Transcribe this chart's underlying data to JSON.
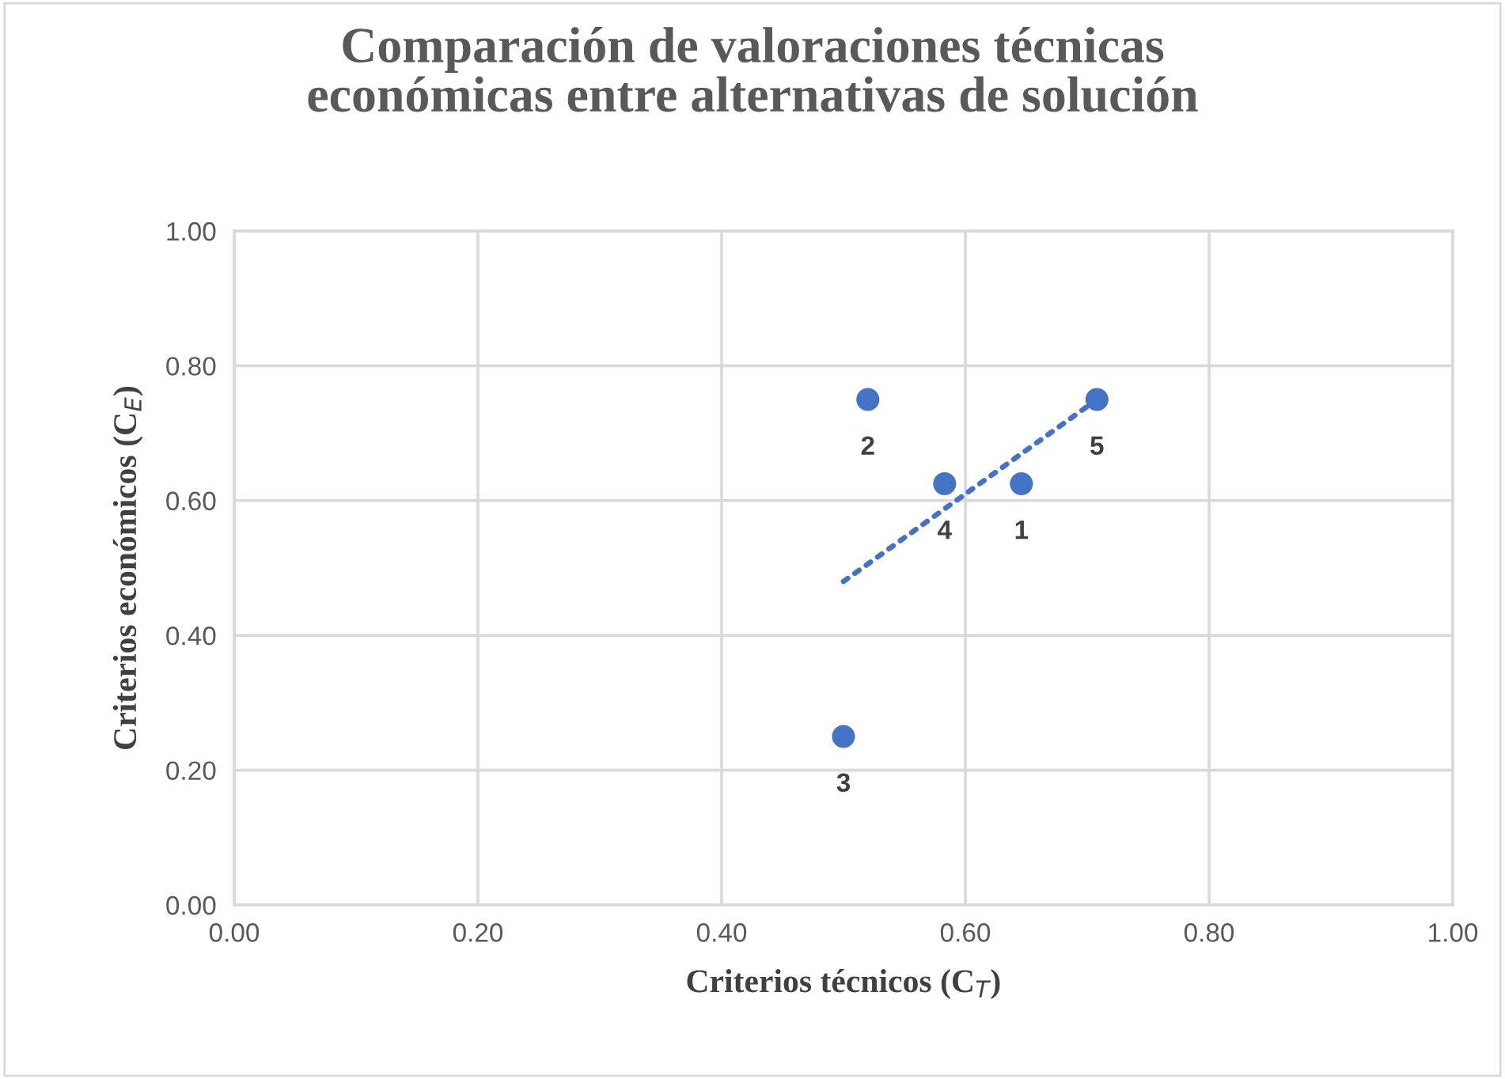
{
  "chart_data": {
    "type": "scatter",
    "title": "Comparación de valoraciones técnicas\neconómicas entre alternativas de solución",
    "xlabel": "Criterios técnicos (C$_{T}$)",
    "ylabel": "Criterios económicos (C$_{E}$)",
    "series": [
      {
        "color": "#4472c4",
        "marker": "circle",
        "x": [
          0.646,
          0.52,
          0.5,
          0.583,
          0.708
        ],
        "values": [
          0.625,
          0.75,
          0.25,
          0.625,
          0.75
        ]
      },
      {
        "type": "line",
        "color": "#4472c4",
        "line_style": "dotted",
        "marker": "none",
        "x": [
          0.5,
          0.708
        ],
        "values": [
          0.48,
          0.75
        ]
      }
    ],
    "xlim": [
      0,
      1
    ],
    "ylim": [
      0,
      1
    ],
    "xticks": [
      {
        "value": 0,
        "label": "0.00"
      },
      {
        "value": 0.2,
        "label": "0.20"
      },
      {
        "value": 0.4,
        "label": "0.40"
      },
      {
        "value": 0.6,
        "label": "0.60"
      },
      {
        "value": 0.8,
        "label": "0.80"
      },
      {
        "value": 1,
        "label": "1.00"
      }
    ],
    "yticks": [
      {
        "value": 0,
        "label": "0.00"
      },
      {
        "value": 0.2,
        "label": "0.20"
      },
      {
        "value": 0.4,
        "label": "0.40"
      },
      {
        "value": 0.6,
        "label": "0.60"
      },
      {
        "value": 0.8,
        "label": "0.80"
      },
      {
        "value": 1,
        "label": "1.00"
      }
    ],
    "annotations": [
      {
        "text": "1",
        "x": 0.646,
        "y": 0.625
      },
      {
        "text": "2",
        "x": 0.52,
        "y": 0.75
      },
      {
        "text": "3",
        "x": 0.5,
        "y": 0.25
      },
      {
        "text": "4",
        "x": 0.583,
        "y": 0.625
      },
      {
        "text": "5",
        "x": 0.708,
        "y": 0.75
      }
    ],
    "grid": true,
    "legend": false
  }
}
